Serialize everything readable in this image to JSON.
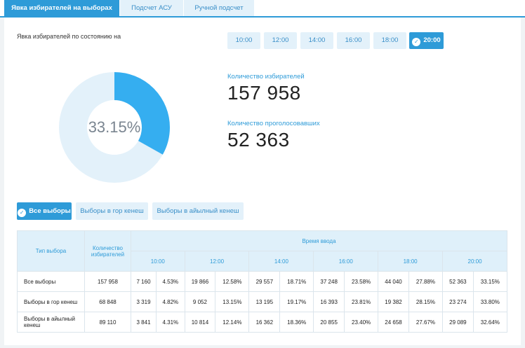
{
  "tabs": [
    {
      "label": "Явка избирателей на выборах",
      "active": true
    },
    {
      "label": "Подсчет АСУ",
      "active": false
    },
    {
      "label": "Ручной подсчет",
      "active": false
    }
  ],
  "state_label": "Явка избирателей по состоянию на",
  "times": [
    {
      "label": "10:00",
      "active": false
    },
    {
      "label": "12:00",
      "active": false
    },
    {
      "label": "14:00",
      "active": false
    },
    {
      "label": "16:00",
      "active": false
    },
    {
      "label": "18:00",
      "active": false
    },
    {
      "label": "20:00",
      "active": true
    }
  ],
  "donut": {
    "percent_label": "33.15%",
    "fraction": 0.3315,
    "fill_color": "#35aef0",
    "track_color": "#e3f1fa"
  },
  "stats": {
    "voters_label": "Количество избирателей",
    "voters_value": "157 958",
    "voted_label": "Количество проголосовавших",
    "voted_value": "52 363"
  },
  "filters": [
    {
      "label": "Все выборы",
      "active": true
    },
    {
      "label": "Выборы в гор кенеш",
      "active": false
    },
    {
      "label": "Выборы в айылный кенеш",
      "active": false
    }
  ],
  "table": {
    "col_type": "Тип выбора",
    "col_voters": "Количество избирателей",
    "col_time": "Время ввода",
    "time_cols": [
      "10:00",
      "12:00",
      "14:00",
      "16:00",
      "18:00",
      "20:00"
    ],
    "rows": [
      {
        "type": "Все выборы",
        "voters": "157 958",
        "cells": [
          "7 160",
          "4.53%",
          "19 866",
          "12.58%",
          "29 557",
          "18.71%",
          "37 248",
          "23.58%",
          "44 040",
          "27.88%",
          "52 363",
          "33.15%"
        ]
      },
      {
        "type": "Выборы в гор кенеш",
        "voters": "68 848",
        "cells": [
          "3 319",
          "4.82%",
          "9 052",
          "13.15%",
          "13 195",
          "19.17%",
          "16 393",
          "23.81%",
          "19 382",
          "28.15%",
          "23 274",
          "33.80%"
        ]
      },
      {
        "type": "Выборы в айылный кенеш",
        "voters": "89 110",
        "cells": [
          "3 841",
          "4.31%",
          "10 814",
          "12.14%",
          "16 362",
          "18.36%",
          "20 855",
          "23.40%",
          "24 658",
          "27.67%",
          "29 089",
          "32.64%"
        ]
      }
    ]
  }
}
